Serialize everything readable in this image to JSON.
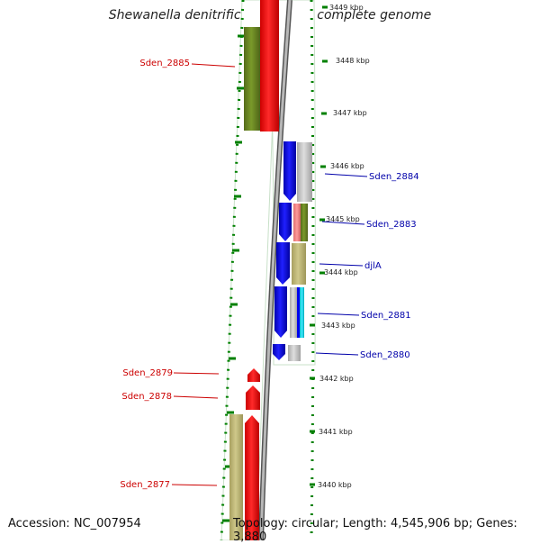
{
  "title": "Shewanella denitrificans OS217, complete genome",
  "accession": "Accession: NC_007954",
  "topology": "Topology: circular; Length: 4,545,906 bp; Genes: 3,880",
  "scale_labels": [
    "3449 kbp",
    "3448 kbp",
    "3447 kbp",
    "3446 kbp",
    "3445 kbp",
    "3444 kbp",
    "3443 kbp",
    "3442 kbp",
    "3441 kbp",
    "3440 kbp"
  ],
  "gene_labels_left": [
    "Sden_2885",
    "Sden_2879",
    "Sden_2878",
    "Sden_2877"
  ],
  "gene_labels_right": [
    "Sden_2884",
    "Sden_2883",
    "djlA",
    "Sden_2881",
    "Sden_2880"
  ],
  "colors": {
    "forward_label": "#cc0000",
    "reverse_label": "#0000aa",
    "red_gene": "#ff0000",
    "blue_gene": "#0000ee",
    "olive_gene": "#6b8e23",
    "khaki_gene": "#bdb76b",
    "grey_gene": "#c0c0c0",
    "cyan_gene": "#00d0e0",
    "pink_gene": "#f08080",
    "backbone": "#8c8c8c",
    "tick_green": "#008000"
  }
}
